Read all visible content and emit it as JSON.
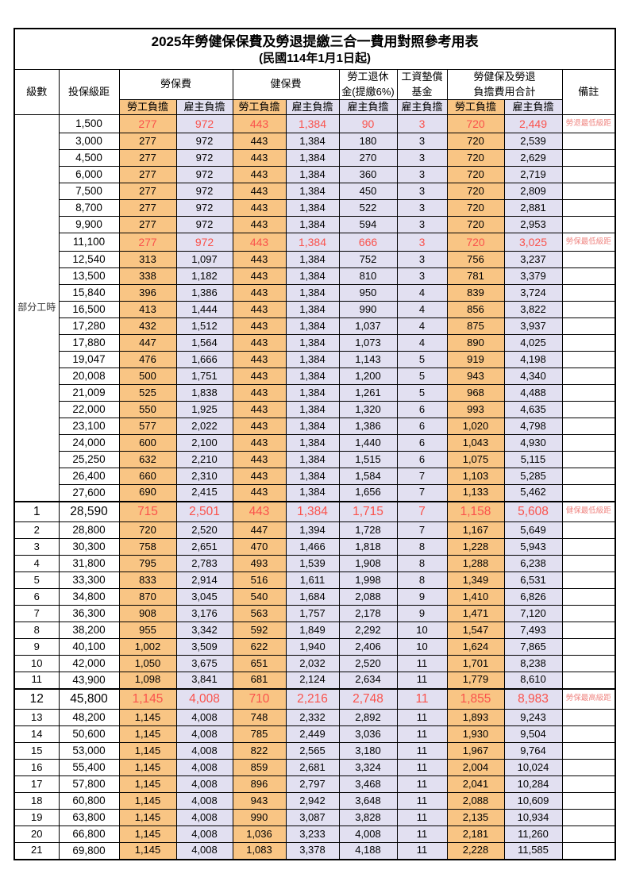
{
  "title": {
    "main": "2025年勞健保保費及勞退提繳三合一費用對照參考用表",
    "sub": "(民國114年1月1日起)"
  },
  "colors": {
    "employee_burden_bg": "#f9c584",
    "employer_burden_bg": "#e2e0f1",
    "highlight_red": "#fa524c",
    "remark_red": "#ef8682",
    "grid": "#000000"
  },
  "header": {
    "level": "級數",
    "bracket": "投保級距",
    "labor_fee": "勞保費",
    "health_fee": "健保費",
    "pension_line1": "勞工退休",
    "pension_line2": "金(提繳6%)",
    "wage_fund_line1": "工資墊償",
    "wage_fund_line2": "基金",
    "total_line1": "勞健保及勞退",
    "total_line2": "負擔費用合計",
    "remark": "備註",
    "employee": "勞工負擔",
    "employer": "雇主負擔"
  },
  "table": {
    "part_time_label": "部分工時",
    "part_time_rowspan": 23,
    "rows": [
      {
        "level": "",
        "bracket": "1,500",
        "cells": [
          "277",
          "972",
          "443",
          "1,384",
          "90",
          "3",
          "720",
          "2,449"
        ],
        "remark": "勞退最低級距",
        "highlight": true,
        "big": false
      },
      {
        "level": "",
        "bracket": "3,000",
        "cells": [
          "277",
          "972",
          "443",
          "1,384",
          "180",
          "3",
          "720",
          "2,539"
        ],
        "remark": "",
        "highlight": false,
        "big": false
      },
      {
        "level": "",
        "bracket": "4,500",
        "cells": [
          "277",
          "972",
          "443",
          "1,384",
          "270",
          "3",
          "720",
          "2,629"
        ],
        "remark": "",
        "highlight": false,
        "big": false
      },
      {
        "level": "",
        "bracket": "6,000",
        "cells": [
          "277",
          "972",
          "443",
          "1,384",
          "360",
          "3",
          "720",
          "2,719"
        ],
        "remark": "",
        "highlight": false,
        "big": false
      },
      {
        "level": "",
        "bracket": "7,500",
        "cells": [
          "277",
          "972",
          "443",
          "1,384",
          "450",
          "3",
          "720",
          "2,809"
        ],
        "remark": "",
        "highlight": false,
        "big": false
      },
      {
        "level": "",
        "bracket": "8,700",
        "cells": [
          "277",
          "972",
          "443",
          "1,384",
          "522",
          "3",
          "720",
          "2,881"
        ],
        "remark": "",
        "highlight": false,
        "big": false
      },
      {
        "level": "",
        "bracket": "9,900",
        "cells": [
          "277",
          "972",
          "443",
          "1,384",
          "594",
          "3",
          "720",
          "2,953"
        ],
        "remark": "",
        "highlight": false,
        "big": false
      },
      {
        "level": "",
        "bracket": "11,100",
        "cells": [
          "277",
          "972",
          "443",
          "1,384",
          "666",
          "3",
          "720",
          "3,025"
        ],
        "remark": "勞保最低級距",
        "highlight": true,
        "big": false
      },
      {
        "level": "",
        "bracket": "12,540",
        "cells": [
          "313",
          "1,097",
          "443",
          "1,384",
          "752",
          "3",
          "756",
          "3,237"
        ],
        "remark": "",
        "highlight": false,
        "big": false
      },
      {
        "level": "",
        "bracket": "13,500",
        "cells": [
          "338",
          "1,182",
          "443",
          "1,384",
          "810",
          "3",
          "781",
          "3,379"
        ],
        "remark": "",
        "highlight": false,
        "big": false
      },
      {
        "level": "",
        "bracket": "15,840",
        "cells": [
          "396",
          "1,386",
          "443",
          "1,384",
          "950",
          "4",
          "839",
          "3,724"
        ],
        "remark": "",
        "highlight": false,
        "big": false
      },
      {
        "level": "",
        "bracket": "16,500",
        "cells": [
          "413",
          "1,444",
          "443",
          "1,384",
          "990",
          "4",
          "856",
          "3,822"
        ],
        "remark": "",
        "highlight": false,
        "big": false
      },
      {
        "level": "",
        "bracket": "17,280",
        "cells": [
          "432",
          "1,512",
          "443",
          "1,384",
          "1,037",
          "4",
          "875",
          "3,937"
        ],
        "remark": "",
        "highlight": false,
        "big": false
      },
      {
        "level": "",
        "bracket": "17,880",
        "cells": [
          "447",
          "1,564",
          "443",
          "1,384",
          "1,073",
          "4",
          "890",
          "4,025"
        ],
        "remark": "",
        "highlight": false,
        "big": false
      },
      {
        "level": "",
        "bracket": "19,047",
        "cells": [
          "476",
          "1,666",
          "443",
          "1,384",
          "1,143",
          "5",
          "919",
          "4,198"
        ],
        "remark": "",
        "highlight": false,
        "big": false
      },
      {
        "level": "",
        "bracket": "20,008",
        "cells": [
          "500",
          "1,751",
          "443",
          "1,384",
          "1,200",
          "5",
          "943",
          "4,340"
        ],
        "remark": "",
        "highlight": false,
        "big": false
      },
      {
        "level": "",
        "bracket": "21,009",
        "cells": [
          "525",
          "1,838",
          "443",
          "1,384",
          "1,261",
          "5",
          "968",
          "4,488"
        ],
        "remark": "",
        "highlight": false,
        "big": false
      },
      {
        "level": "",
        "bracket": "22,000",
        "cells": [
          "550",
          "1,925",
          "443",
          "1,384",
          "1,320",
          "6",
          "993",
          "4,635"
        ],
        "remark": "",
        "highlight": false,
        "big": false
      },
      {
        "level": "",
        "bracket": "23,100",
        "cells": [
          "577",
          "2,022",
          "443",
          "1,384",
          "1,386",
          "6",
          "1,020",
          "4,798"
        ],
        "remark": "",
        "highlight": false,
        "big": false
      },
      {
        "level": "",
        "bracket": "24,000",
        "cells": [
          "600",
          "2,100",
          "443",
          "1,384",
          "1,440",
          "6",
          "1,043",
          "4,930"
        ],
        "remark": "",
        "highlight": false,
        "big": false
      },
      {
        "level": "",
        "bracket": "25,250",
        "cells": [
          "632",
          "2,210",
          "443",
          "1,384",
          "1,515",
          "6",
          "1,075",
          "5,115"
        ],
        "remark": "",
        "highlight": false,
        "big": false
      },
      {
        "level": "",
        "bracket": "26,400",
        "cells": [
          "660",
          "2,310",
          "443",
          "1,384",
          "1,584",
          "7",
          "1,103",
          "5,285"
        ],
        "remark": "",
        "highlight": false,
        "big": false
      },
      {
        "level": "",
        "bracket": "27,600",
        "cells": [
          "690",
          "2,415",
          "443",
          "1,384",
          "1,656",
          "7",
          "1,133",
          "5,462"
        ],
        "remark": "",
        "highlight": false,
        "big": false
      },
      {
        "level": "1",
        "bracket": "28,590",
        "cells": [
          "715",
          "2,501",
          "443",
          "1,384",
          "1,715",
          "7",
          "1,158",
          "5,608"
        ],
        "remark": "健保最低級距",
        "highlight": true,
        "big": true
      },
      {
        "level": "2",
        "bracket": "28,800",
        "cells": [
          "720",
          "2,520",
          "447",
          "1,394",
          "1,728",
          "7",
          "1,167",
          "5,649"
        ],
        "remark": "",
        "highlight": false,
        "big": false
      },
      {
        "level": "3",
        "bracket": "30,300",
        "cells": [
          "758",
          "2,651",
          "470",
          "1,466",
          "1,818",
          "8",
          "1,228",
          "5,943"
        ],
        "remark": "",
        "highlight": false,
        "big": false
      },
      {
        "level": "4",
        "bracket": "31,800",
        "cells": [
          "795",
          "2,783",
          "493",
          "1,539",
          "1,908",
          "8",
          "1,288",
          "6,238"
        ],
        "remark": "",
        "highlight": false,
        "big": false
      },
      {
        "level": "5",
        "bracket": "33,300",
        "cells": [
          "833",
          "2,914",
          "516",
          "1,611",
          "1,998",
          "8",
          "1,349",
          "6,531"
        ],
        "remark": "",
        "highlight": false,
        "big": false
      },
      {
        "level": "6",
        "bracket": "34,800",
        "cells": [
          "870",
          "3,045",
          "540",
          "1,684",
          "2,088",
          "9",
          "1,410",
          "6,826"
        ],
        "remark": "",
        "highlight": false,
        "big": false
      },
      {
        "level": "7",
        "bracket": "36,300",
        "cells": [
          "908",
          "3,176",
          "563",
          "1,757",
          "2,178",
          "9",
          "1,471",
          "7,120"
        ],
        "remark": "",
        "highlight": false,
        "big": false
      },
      {
        "level": "8",
        "bracket": "38,200",
        "cells": [
          "955",
          "3,342",
          "592",
          "1,849",
          "2,292",
          "10",
          "1,547",
          "7,493"
        ],
        "remark": "",
        "highlight": false,
        "big": false
      },
      {
        "level": "9",
        "bracket": "40,100",
        "cells": [
          "1,002",
          "3,509",
          "622",
          "1,940",
          "2,406",
          "10",
          "1,624",
          "7,865"
        ],
        "remark": "",
        "highlight": false,
        "big": false
      },
      {
        "level": "10",
        "bracket": "42,000",
        "cells": [
          "1,050",
          "3,675",
          "651",
          "2,032",
          "2,520",
          "11",
          "1,701",
          "8,238"
        ],
        "remark": "",
        "highlight": false,
        "big": false
      },
      {
        "level": "11",
        "bracket": "43,900",
        "cells": [
          "1,098",
          "3,841",
          "681",
          "2,124",
          "2,634",
          "11",
          "1,779",
          "8,610"
        ],
        "remark": "",
        "highlight": false,
        "big": false
      },
      {
        "level": "12",
        "bracket": "45,800",
        "cells": [
          "1,145",
          "4,008",
          "710",
          "2,216",
          "2,748",
          "11",
          "1,855",
          "8,983"
        ],
        "remark": "勞保最高級距",
        "highlight": true,
        "big": true
      },
      {
        "level": "13",
        "bracket": "48,200",
        "cells": [
          "1,145",
          "4,008",
          "748",
          "2,332",
          "2,892",
          "11",
          "1,893",
          "9,243"
        ],
        "remark": "",
        "highlight": false,
        "big": false
      },
      {
        "level": "14",
        "bracket": "50,600",
        "cells": [
          "1,145",
          "4,008",
          "785",
          "2,449",
          "3,036",
          "11",
          "1,930",
          "9,504"
        ],
        "remark": "",
        "highlight": false,
        "big": false
      },
      {
        "level": "15",
        "bracket": "53,000",
        "cells": [
          "1,145",
          "4,008",
          "822",
          "2,565",
          "3,180",
          "11",
          "1,967",
          "9,764"
        ],
        "remark": "",
        "highlight": false,
        "big": false
      },
      {
        "level": "16",
        "bracket": "55,400",
        "cells": [
          "1,145",
          "4,008",
          "859",
          "2,681",
          "3,324",
          "11",
          "2,004",
          "10,024"
        ],
        "remark": "",
        "highlight": false,
        "big": false
      },
      {
        "level": "17",
        "bracket": "57,800",
        "cells": [
          "1,145",
          "4,008",
          "896",
          "2,797",
          "3,468",
          "11",
          "2,041",
          "10,284"
        ],
        "remark": "",
        "highlight": false,
        "big": false
      },
      {
        "level": "18",
        "bracket": "60,800",
        "cells": [
          "1,145",
          "4,008",
          "943",
          "2,942",
          "3,648",
          "11",
          "2,088",
          "10,609"
        ],
        "remark": "",
        "highlight": false,
        "big": false
      },
      {
        "level": "19",
        "bracket": "63,800",
        "cells": [
          "1,145",
          "4,008",
          "990",
          "3,087",
          "3,828",
          "11",
          "2,135",
          "10,934"
        ],
        "remark": "",
        "highlight": false,
        "big": false
      },
      {
        "level": "20",
        "bracket": "66,800",
        "cells": [
          "1,145",
          "4,008",
          "1,036",
          "3,233",
          "4,008",
          "11",
          "2,181",
          "11,260"
        ],
        "remark": "",
        "highlight": false,
        "big": false
      },
      {
        "level": "21",
        "bracket": "69,800",
        "cells": [
          "1,145",
          "4,008",
          "1,083",
          "3,378",
          "4,188",
          "11",
          "2,228",
          "11,585"
        ],
        "remark": "",
        "highlight": false,
        "big": false
      }
    ]
  }
}
